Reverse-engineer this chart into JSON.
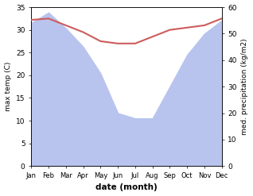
{
  "months": [
    "Jan",
    "Feb",
    "Mar",
    "Apr",
    "May",
    "Jun",
    "Jul",
    "Aug",
    "Sep",
    "Oct",
    "Nov",
    "Dec"
  ],
  "x": [
    0,
    1,
    2,
    3,
    4,
    5,
    6,
    7,
    8,
    9,
    10,
    11
  ],
  "temp": [
    32.2,
    32.5,
    31.0,
    29.5,
    27.5,
    27.0,
    27.0,
    28.5,
    30.0,
    30.5,
    31.0,
    32.5
  ],
  "precip": [
    54,
    58,
    52,
    45,
    35,
    20,
    18,
    18,
    30,
    42,
    50,
    55
  ],
  "temp_color": "#cd5c5c",
  "precip_fill_color": "#b8c4ee",
  "temp_ylim": [
    0,
    35
  ],
  "precip_ylim": [
    0,
    60
  ],
  "temp_yticks": [
    0,
    5,
    10,
    15,
    20,
    25,
    30,
    35
  ],
  "precip_yticks": [
    0,
    10,
    20,
    30,
    40,
    50,
    60
  ],
  "ylabel_left": "max temp (C)",
  "ylabel_right": "med. precipitation (kg/m2)",
  "xlabel": "date (month)",
  "bg_color": "#ffffff"
}
